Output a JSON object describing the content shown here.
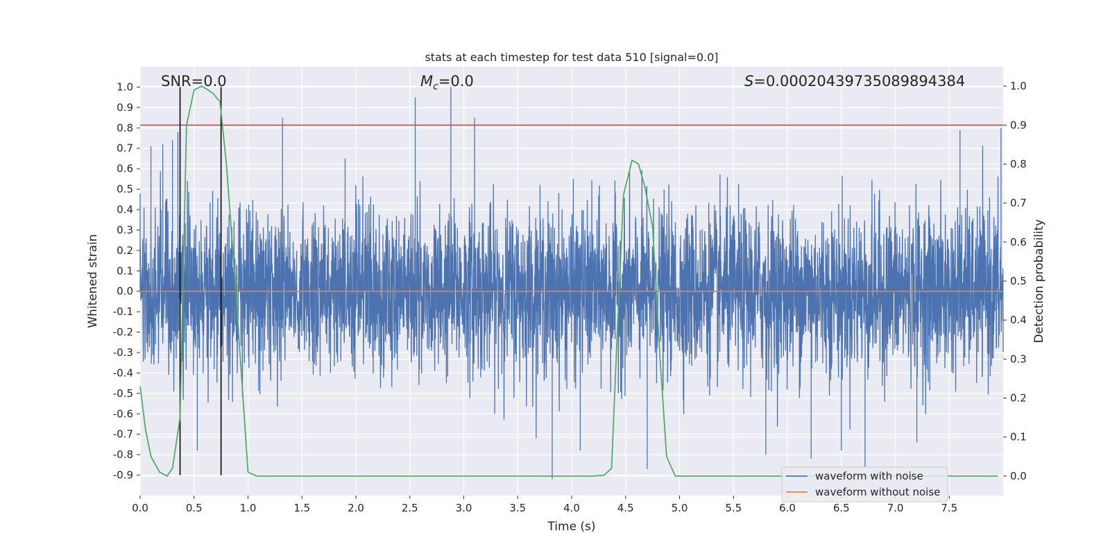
{
  "chart_data": {
    "type": "line",
    "title": "stats at each timestep for test data 510 [signal=0.0]",
    "xlabel": "Time (s)",
    "ylabel_left": "Whitened strain",
    "ylabel_right": "Detection probability",
    "xlim": [
      0.0,
      8.0
    ],
    "ylim_left": [
      -1.0,
      1.1
    ],
    "ylim_right": [
      -0.05,
      1.05
    ],
    "x_ticks": [
      "0.0",
      "0.5",
      "1.0",
      "1.5",
      "2.0",
      "2.5",
      "3.0",
      "3.5",
      "4.0",
      "4.5",
      "5.0",
      "5.5",
      "6.0",
      "6.5",
      "7.0",
      "7.5"
    ],
    "y_ticks_left": [
      "1.0",
      "0.9",
      "0.8",
      "0.7",
      "0.6",
      "0.5",
      "0.4",
      "0.3",
      "0.2",
      "0.1",
      "0.0",
      "-0.1",
      "-0.2",
      "-0.3",
      "-0.4",
      "-0.5",
      "-0.6",
      "-0.7",
      "-0.8",
      "-0.9"
    ],
    "y_ticks_right": [
      "1.0",
      "0.9",
      "0.8",
      "0.7",
      "0.6",
      "0.5",
      "0.4",
      "0.3",
      "0.2",
      "0.1",
      "0.0"
    ],
    "grid": true,
    "legend_position": "lower-right",
    "annotations": {
      "snr": "SNR=0.0",
      "mc_symbol": "M",
      "mc_sub": "c",
      "mc_rest": "=0.0",
      "s_symbol": "S",
      "s_rest": "=0.00020439735089894384"
    },
    "series": [
      {
        "name": "waveform with noise",
        "color": "#4c72b0",
        "axis": "left",
        "kind": "noise",
        "envelope_typical": [
          -0.5,
          0.5
        ],
        "peaks": [
          [
            0.0,
            0.48
          ],
          [
            0.1,
            0.71
          ],
          [
            0.21,
            0.72
          ],
          [
            0.3,
            0.74
          ],
          [
            0.35,
            0.78
          ],
          [
            0.53,
            -0.78
          ],
          [
            1.32,
            0.85
          ],
          [
            1.9,
            0.65
          ],
          [
            2.55,
            0.95
          ],
          [
            2.88,
            1.0
          ],
          [
            3.1,
            0.85
          ],
          [
            3.82,
            -0.92
          ],
          [
            4.08,
            -0.78
          ],
          [
            4.7,
            -0.87
          ],
          [
            5.8,
            -0.8
          ],
          [
            6.22,
            -0.82
          ],
          [
            6.5,
            -0.78
          ],
          [
            6.72,
            -0.86
          ],
          [
            7.2,
            -0.74
          ],
          [
            7.6,
            0.79
          ],
          [
            7.98,
            0.8
          ]
        ]
      },
      {
        "name": "waveform without noise",
        "color": "#dd8452",
        "axis": "left",
        "x": [
          0.0,
          8.0
        ],
        "values": [
          0.0,
          0.0
        ]
      },
      {
        "name": "",
        "color": "#55a868",
        "axis": "right",
        "x": [
          0.0,
          0.05,
          0.1,
          0.18,
          0.25,
          0.3,
          0.37,
          0.43,
          0.5,
          0.57,
          0.63,
          0.68,
          0.74,
          0.8,
          0.88,
          1.0,
          1.08,
          1.5,
          2.0,
          3.0,
          4.0,
          4.2,
          4.3,
          4.37,
          4.42,
          4.48,
          4.56,
          4.62,
          4.68,
          4.75,
          4.82,
          4.88,
          4.96,
          5.0,
          6.0,
          7.0,
          7.95
        ],
        "values": [
          0.23,
          0.12,
          0.05,
          0.01,
          0.0,
          0.02,
          0.15,
          0.9,
          0.99,
          1.0,
          0.99,
          0.98,
          0.96,
          0.8,
          0.5,
          0.01,
          0.0,
          0.0,
          0.0,
          0.0,
          0.0,
          0.0,
          0.002,
          0.02,
          0.35,
          0.72,
          0.81,
          0.8,
          0.74,
          0.64,
          0.3,
          0.05,
          0.0,
          0.0,
          0.0,
          0.0,
          0.0
        ]
      }
    ],
    "threshold_line": {
      "color": "#c44e52",
      "axis": "right",
      "value": 0.9
    },
    "vertical_markers": {
      "color": "#000000",
      "x": [
        0.37,
        0.75
      ],
      "ymin": -0.9,
      "ymax": 1.0
    }
  }
}
